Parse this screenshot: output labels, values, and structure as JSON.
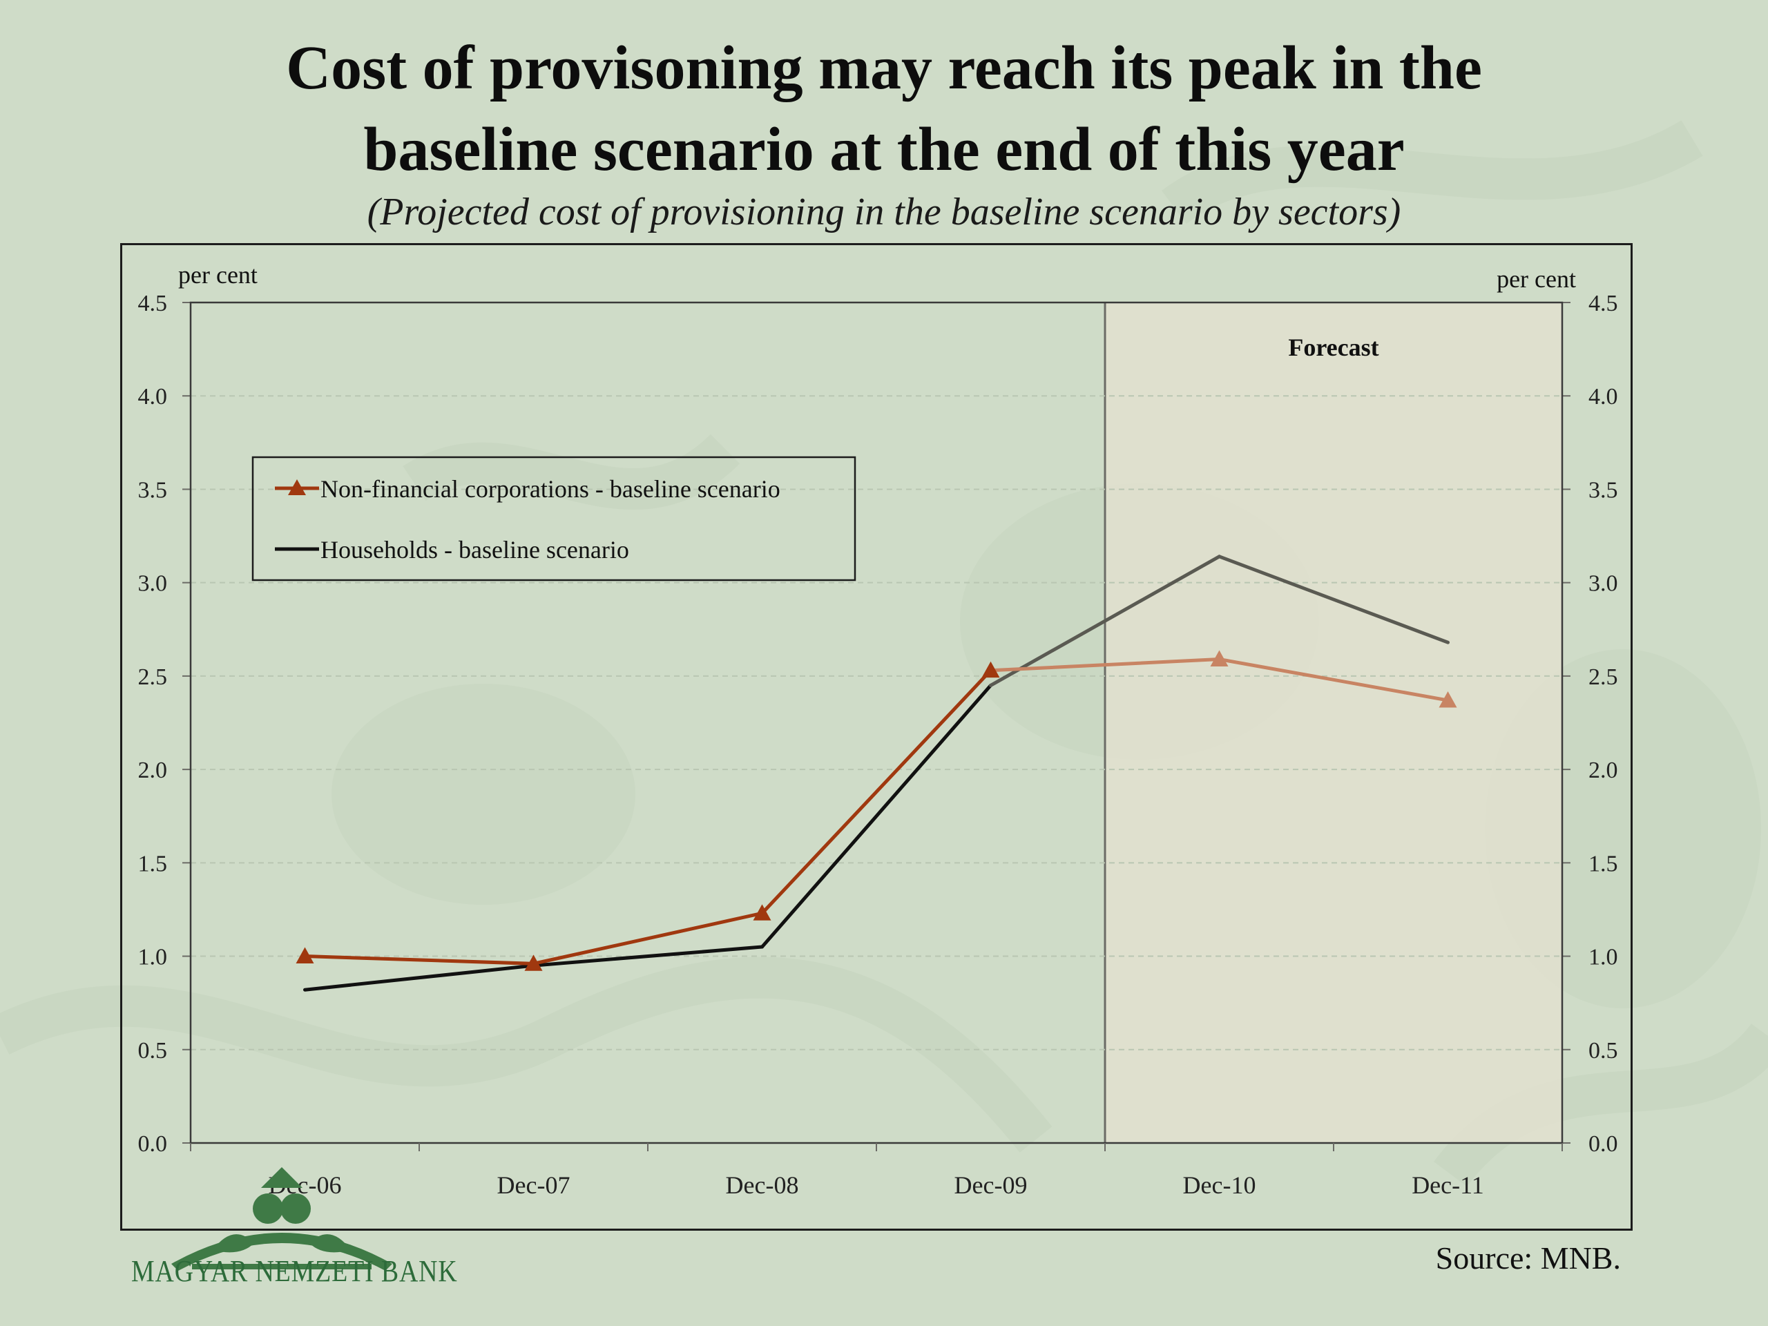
{
  "header": {
    "title_line1": "Cost of provisoning may reach its peak in the",
    "title_line2": "baseline scenario at the end of this year",
    "subtitle": "(Projected cost of  provisioning in the baseline scenario by sectors)"
  },
  "footer": {
    "source": "Source: MNB.",
    "logo_text": "MAGYAR NEMZETI BANK"
  },
  "colors": {
    "background": "#cfdcc8",
    "nonfin_series": "#a0380f",
    "nonfin_forecast": "#c88463",
    "households_series": "#111111",
    "households_forecast": "#5a5a52",
    "forecast_fill": "#e2e1cf"
  },
  "chart_data": {
    "type": "line",
    "title": "Cost of provisoning may reach its peak in the baseline scenario at the end of this year",
    "subtitle": "(Projected cost of  provisioning in the baseline scenario by sectors)",
    "categories": [
      "Dec-06",
      "Dec-07",
      "Dec-08",
      "Dec-09",
      "Dec-10",
      "Dec-11"
    ],
    "y_left_label": "per cent",
    "y_right_label": "per cent",
    "ylim": [
      0,
      4.5
    ],
    "yticks": [
      "0.0",
      "0.5",
      "1.0",
      "1.5",
      "2.0",
      "2.5",
      "3.0",
      "3.5",
      "4.0",
      "4.5"
    ],
    "grid": true,
    "legend_position": "upper-left",
    "forecast_label": "Forecast",
    "forecast_start_category": "Dec-10",
    "series": [
      {
        "name": "Non-financial corporations - baseline scenario",
        "marker": "triangle",
        "values": [
          1.0,
          0.96,
          1.23,
          2.53,
          2.59,
          2.37
        ]
      },
      {
        "name": "Households - baseline scenario",
        "marker": "none",
        "values": [
          0.82,
          0.95,
          1.05,
          2.45,
          3.14,
          2.68
        ]
      }
    ]
  }
}
